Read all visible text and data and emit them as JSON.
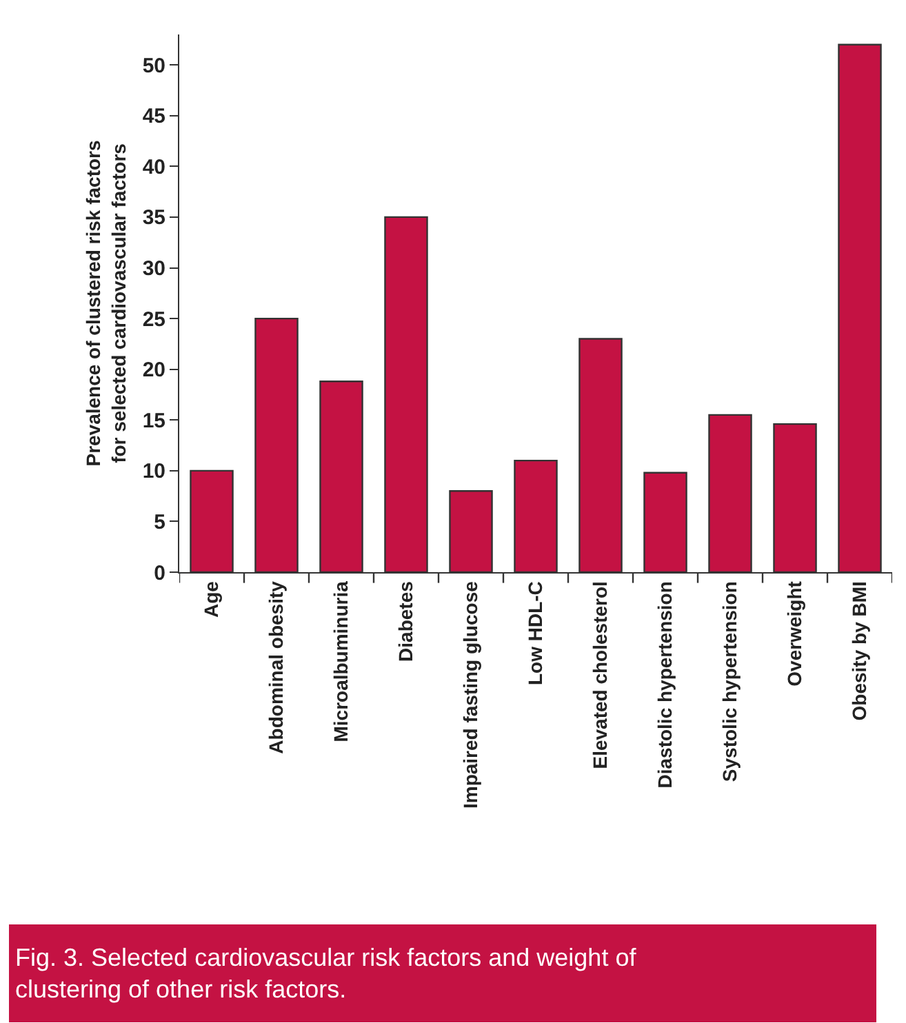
{
  "chart_data": {
    "type": "bar",
    "categories": [
      "Age",
      "Abdominal obesity",
      "Microalbuminuria",
      "Diabetes",
      "Impaired fasting glucose",
      "Low HDL-C",
      "Elevated cholesterol",
      "Diastolic hypertension",
      "Systolic hypertension",
      "Overweight",
      "Obesity by BMI"
    ],
    "values": [
      10,
      25,
      18.8,
      35,
      8,
      11,
      23,
      9.8,
      15.5,
      14.6,
      52
    ],
    "color": "#c41243",
    "ylabel": "Prevalence of clustered risk factors\nfor selected cardiovascular factors",
    "ylim": [
      0,
      53
    ],
    "yticks": [
      0,
      5,
      10,
      15,
      20,
      25,
      30,
      35,
      40,
      45,
      50
    ],
    "annotations": [
      "Fig. 3. Selected cardiovascular risk factors and weight of\nclustering of other risk factors."
    ]
  }
}
